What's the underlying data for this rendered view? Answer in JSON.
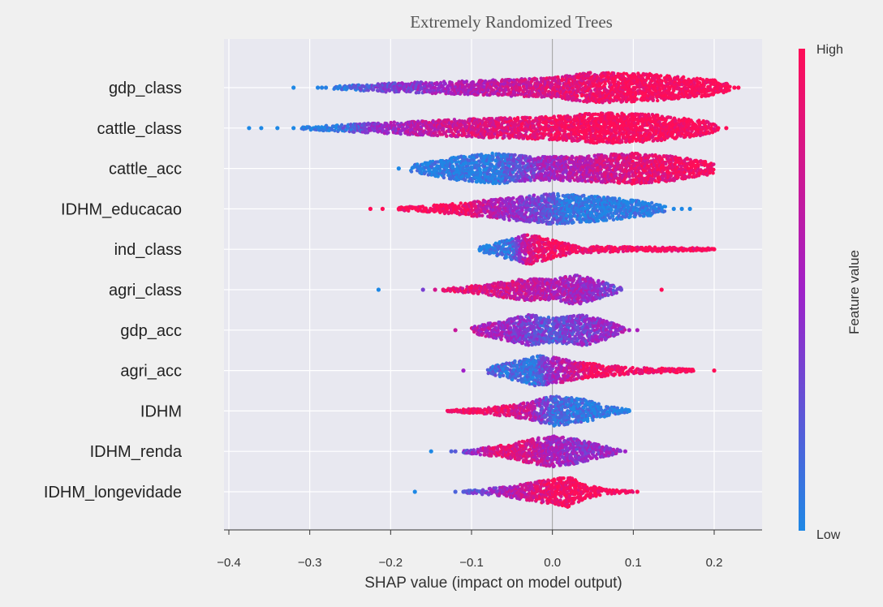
{
  "chart_data": {
    "type": "beeswarm",
    "title": "Extremely Randomized Trees",
    "xlabel": "SHAP value (impact on model output)",
    "xlim": [
      -0.4,
      0.26
    ],
    "x_ticks": [
      -0.4,
      -0.3,
      -0.2,
      -0.1,
      0.0,
      0.1,
      0.2
    ],
    "x_tick_labels": [
      "−0.4",
      "−0.3",
      "−0.2",
      "−0.1",
      "0.0",
      "0.1",
      "0.2"
    ],
    "grid": true,
    "colorbar": {
      "label": "Feature value",
      "high_label": "High",
      "low_label": "Low",
      "low_color": "#1e88e5",
      "mid_color": "#a020c8",
      "high_color": "#ff0d57"
    },
    "features": [
      {
        "name": "gdp_class",
        "min": -0.32,
        "max": 0.23,
        "outliers": [
          -0.32,
          -0.29,
          -0.285,
          -0.28,
          0.225,
          0.23
        ],
        "density": [
          [
            -0.27,
            0.1
          ],
          [
            -0.2,
            0.3
          ],
          [
            -0.1,
            0.45
          ],
          [
            0.0,
            0.65
          ],
          [
            0.05,
            1.0
          ],
          [
            0.12,
            0.9
          ],
          [
            0.2,
            0.5
          ],
          [
            0.22,
            0.2
          ]
        ],
        "colors": [
          [
            -0.3,
            0.0
          ],
          [
            -0.25,
            0.1
          ],
          [
            -0.2,
            0.35
          ],
          [
            -0.1,
            0.6
          ],
          [
            0.0,
            0.8
          ],
          [
            0.1,
            1.0
          ],
          [
            0.23,
            1.0
          ]
        ]
      },
      {
        "name": "cattle_class",
        "min": -0.375,
        "max": 0.215,
        "outliers": [
          -0.375,
          -0.36,
          -0.34,
          -0.32,
          0.205,
          0.215
        ],
        "density": [
          [
            -0.31,
            0.1
          ],
          [
            -0.23,
            0.3
          ],
          [
            -0.1,
            0.6
          ],
          [
            0.0,
            0.75
          ],
          [
            0.06,
            1.0
          ],
          [
            0.12,
            0.9
          ],
          [
            0.19,
            0.45
          ],
          [
            0.205,
            0.15
          ]
        ],
        "colors": [
          [
            -0.375,
            0.0
          ],
          [
            -0.28,
            0.0
          ],
          [
            -0.22,
            0.4
          ],
          [
            -0.15,
            0.7
          ],
          [
            -0.05,
            0.85
          ],
          [
            0.05,
            1.0
          ],
          [
            0.215,
            1.0
          ]
        ]
      },
      {
        "name": "cattle_acc",
        "min": -0.19,
        "max": 0.2,
        "outliers": [
          -0.19
        ],
        "density": [
          [
            -0.175,
            0.2
          ],
          [
            -0.12,
            0.75
          ],
          [
            -0.07,
            1.0
          ],
          [
            -0.02,
            0.75
          ],
          [
            0.04,
            0.85
          ],
          [
            0.1,
            1.0
          ],
          [
            0.15,
            0.8
          ],
          [
            0.2,
            0.35
          ]
        ],
        "colors": [
          [
            -0.19,
            0.0
          ],
          [
            -0.07,
            0.05
          ],
          [
            -0.02,
            0.45
          ],
          [
            0.02,
            0.6
          ],
          [
            0.1,
            0.85
          ],
          [
            0.2,
            1.0
          ]
        ]
      },
      {
        "name": "IDHM_educacao",
        "min": -0.225,
        "max": 0.17,
        "outliers": [
          -0.225,
          -0.21,
          -0.19,
          -0.18,
          0.15,
          0.16,
          0.17
        ],
        "density": [
          [
            -0.19,
            0.1
          ],
          [
            -0.12,
            0.35
          ],
          [
            -0.05,
            0.75
          ],
          [
            0.0,
            1.0
          ],
          [
            0.06,
            0.8
          ],
          [
            0.12,
            0.45
          ],
          [
            0.14,
            0.15
          ]
        ],
        "colors": [
          [
            -0.225,
            1.0
          ],
          [
            -0.12,
            1.0
          ],
          [
            -0.07,
            0.6
          ],
          [
            -0.02,
            0.35
          ],
          [
            0.02,
            0.05
          ],
          [
            0.17,
            0.0
          ]
        ]
      },
      {
        "name": "ind_class",
        "min": -0.09,
        "max": 0.2,
        "outliers": [
          -0.09,
          0.18,
          0.19,
          0.2
        ],
        "density": [
          [
            -0.09,
            0.15
          ],
          [
            -0.06,
            0.55
          ],
          [
            -0.03,
            1.0
          ],
          [
            0.0,
            0.6
          ],
          [
            0.03,
            0.25
          ],
          [
            0.1,
            0.15
          ],
          [
            0.2,
            0.08
          ]
        ],
        "colors": [
          [
            -0.09,
            0.0
          ],
          [
            -0.05,
            0.1
          ],
          [
            -0.03,
            0.8
          ],
          [
            0.0,
            0.95
          ],
          [
            0.2,
            1.0
          ]
        ]
      },
      {
        "name": "agri_class",
        "min": -0.215,
        "max": 0.135,
        "outliers": [
          -0.215,
          -0.16,
          -0.145,
          -0.135,
          0.085,
          0.135
        ],
        "density": [
          [
            -0.135,
            0.08
          ],
          [
            -0.08,
            0.35
          ],
          [
            -0.03,
            0.75
          ],
          [
            0.0,
            0.65
          ],
          [
            0.03,
            1.0
          ],
          [
            0.06,
            0.55
          ],
          [
            0.085,
            0.12
          ]
        ],
        "colors": [
          [
            -0.215,
            0.0
          ],
          [
            -0.16,
            0.35
          ],
          [
            -0.14,
            0.9
          ],
          [
            -0.05,
            0.75
          ],
          [
            0.0,
            0.6
          ],
          [
            0.05,
            0.5
          ],
          [
            0.085,
            0.3
          ],
          [
            0.135,
            1.0
          ]
        ]
      },
      {
        "name": "gdp_acc",
        "min": -0.12,
        "max": 0.105,
        "outliers": [
          -0.12,
          0.095,
          0.105
        ],
        "density": [
          [
            -0.1,
            0.2
          ],
          [
            -0.06,
            0.65
          ],
          [
            -0.03,
            1.0
          ],
          [
            0.0,
            0.8
          ],
          [
            0.04,
            1.0
          ],
          [
            0.07,
            0.55
          ],
          [
            0.09,
            0.15
          ]
        ],
        "colors": [
          [
            -0.12,
            0.7
          ],
          [
            -0.06,
            0.5
          ],
          [
            -0.03,
            0.35
          ],
          [
            0.0,
            0.25
          ],
          [
            0.04,
            0.4
          ],
          [
            0.105,
            0.55
          ]
        ]
      },
      {
        "name": "agri_acc",
        "min": -0.11,
        "max": 0.2,
        "outliers": [
          -0.11,
          0.16,
          0.17,
          0.2
        ],
        "density": [
          [
            -0.08,
            0.2
          ],
          [
            -0.05,
            0.6
          ],
          [
            -0.02,
            1.0
          ],
          [
            0.01,
            0.8
          ],
          [
            0.04,
            0.5
          ],
          [
            0.1,
            0.2
          ],
          [
            0.175,
            0.1
          ]
        ],
        "colors": [
          [
            -0.11,
            0.5
          ],
          [
            -0.07,
            0.15
          ],
          [
            -0.02,
            0.1
          ],
          [
            0.0,
            0.5
          ],
          [
            0.05,
            0.95
          ],
          [
            0.2,
            1.0
          ]
        ]
      },
      {
        "name": "IDHM",
        "min": -0.13,
        "max": 0.095,
        "outliers": [
          0.085,
          0.095
        ],
        "density": [
          [
            -0.13,
            0.05
          ],
          [
            -0.08,
            0.2
          ],
          [
            -0.03,
            0.55
          ],
          [
            0.0,
            1.0
          ],
          [
            0.04,
            0.75
          ],
          [
            0.07,
            0.3
          ],
          [
            0.095,
            0.08
          ]
        ],
        "colors": [
          [
            -0.13,
            1.0
          ],
          [
            -0.07,
            0.95
          ],
          [
            -0.03,
            0.7
          ],
          [
            0.0,
            0.15
          ],
          [
            0.095,
            0.0
          ]
        ]
      },
      {
        "name": "IDHM_renda",
        "min": -0.15,
        "max": 0.09,
        "outliers": [
          -0.15,
          -0.125,
          -0.12,
          0.09
        ],
        "density": [
          [
            -0.11,
            0.1
          ],
          [
            -0.06,
            0.4
          ],
          [
            -0.02,
            0.85
          ],
          [
            0.0,
            1.0
          ],
          [
            0.03,
            0.8
          ],
          [
            0.06,
            0.4
          ],
          [
            0.085,
            0.1
          ]
        ],
        "colors": [
          [
            -0.15,
            0.0
          ],
          [
            -0.11,
            0.3
          ],
          [
            -0.07,
            0.9
          ],
          [
            -0.03,
            0.75
          ],
          [
            0.0,
            0.55
          ],
          [
            0.03,
            0.45
          ],
          [
            0.09,
            0.5
          ]
        ]
      },
      {
        "name": "IDHM_longevidade",
        "min": -0.17,
        "max": 0.105,
        "outliers": [
          -0.17,
          -0.12,
          -0.11,
          0.105
        ],
        "density": [
          [
            -0.11,
            0.08
          ],
          [
            -0.06,
            0.3
          ],
          [
            -0.02,
            0.65
          ],
          [
            0.01,
            0.9
          ],
          [
            0.02,
            1.0
          ],
          [
            0.04,
            0.45
          ],
          [
            0.07,
            0.15
          ],
          [
            0.1,
            0.05
          ]
        ],
        "colors": [
          [
            -0.17,
            0.0
          ],
          [
            -0.1,
            0.25
          ],
          [
            -0.05,
            0.6
          ],
          [
            0.0,
            0.95
          ],
          [
            0.105,
            1.0
          ]
        ]
      }
    ]
  }
}
